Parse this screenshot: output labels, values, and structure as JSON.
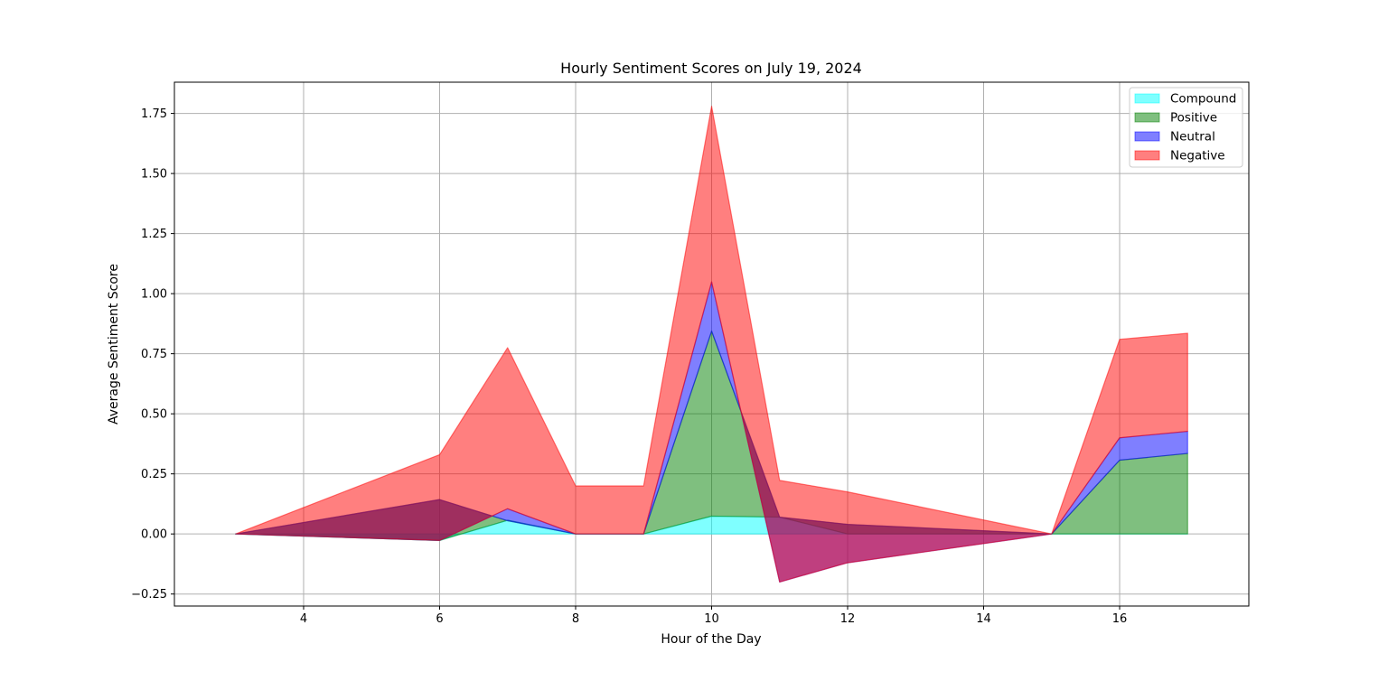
{
  "chart_data": {
    "type": "area",
    "title": "Hourly Sentiment Scores on July 19, 2024",
    "xlabel": "Hour of the Day",
    "ylabel": "Average Sentiment Score",
    "xlim": [
      2.1,
      17.9
    ],
    "ylim": [
      -0.3,
      1.88
    ],
    "xticks": [
      4,
      6,
      8,
      10,
      12,
      14,
      16
    ],
    "yticks": [
      -0.25,
      0.0,
      0.25,
      0.5,
      0.75,
      1.0,
      1.25,
      1.5,
      1.75
    ],
    "ytick_labels": [
      "−0.25",
      "0.00",
      "0.25",
      "0.50",
      "0.75",
      "1.00",
      "1.25",
      "1.50",
      "1.75"
    ],
    "grid": true,
    "stacked": true,
    "legend_position": "top-right",
    "x": [
      3,
      6,
      7,
      8,
      9,
      10,
      11,
      12,
      15,
      16,
      17
    ],
    "series": [
      {
        "name": "Compound",
        "color": "#00ffff",
        "values": [
          0.0,
          -0.027,
          0.057,
          0.0,
          0.0,
          0.074,
          0.07,
          0.0,
          0.0,
          0.0,
          0.0
        ]
      },
      {
        "name": "Positive",
        "color": "#008000",
        "values": [
          0.0,
          0.17,
          -0.002,
          0.0,
          0.0,
          0.77,
          0.0,
          0.04,
          0.0,
          0.307,
          0.335
        ]
      },
      {
        "name": "Neutral",
        "color": "#0000ff",
        "values": [
          0.0,
          -0.17,
          0.05,
          0.0,
          0.0,
          0.205,
          -0.27,
          -0.16,
          0.0,
          0.093,
          0.092
        ]
      },
      {
        "name": "Negative",
        "color": "#ff0000",
        "values": [
          0.0,
          0.357,
          0.67,
          0.2,
          0.2,
          0.731,
          0.423,
          0.295,
          0.0,
          0.41,
          0.408
        ]
      }
    ]
  }
}
